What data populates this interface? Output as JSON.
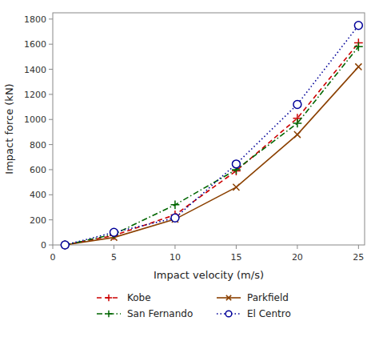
{
  "chart_data": {
    "type": "line",
    "xlabel": "Impact velocity (m/s)",
    "ylabel": "Impact force (kN)",
    "x": [
      1,
      5,
      10,
      15,
      20,
      25
    ],
    "xlim": [
      0,
      25.5
    ],
    "ylim": [
      0,
      1850
    ],
    "xticks": [
      0,
      5,
      10,
      15,
      20,
      25
    ],
    "yticks": [
      0,
      200,
      400,
      600,
      800,
      1000,
      1200,
      1400,
      1600,
      1800
    ],
    "grid": false,
    "legend": "bottom",
    "series": [
      {
        "name": "Kobe",
        "color": "#cc0000",
        "marker": "plus",
        "line_style": "dashed",
        "values": [
          0,
          75,
          240,
          590,
          1010,
          1610
        ]
      },
      {
        "name": "Parkfield",
        "color": "#8B4000",
        "marker": "x",
        "line_style": "solid",
        "values": [
          0,
          60,
          205,
          460,
          880,
          1420
        ]
      },
      {
        "name": "San Fernando",
        "color": "#006600",
        "marker": "plus",
        "line_style": "dashdot",
        "values": [
          0,
          85,
          320,
          600,
          970,
          1580
        ]
      },
      {
        "name": "El Centro",
        "color": "#000099",
        "marker": "circle",
        "line_style": "dotted",
        "values": [
          0,
          100,
          215,
          645,
          1120,
          1750
        ]
      }
    ]
  }
}
